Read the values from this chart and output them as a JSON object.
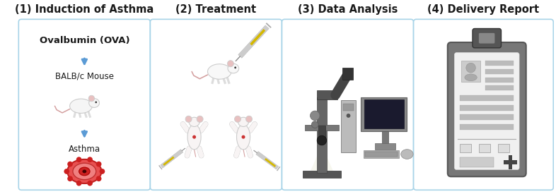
{
  "bg_color": "#ffffff",
  "panel_bg": "#ffffff",
  "panel_border": "#a8d4e8",
  "panel_titles": [
    "(1) Induction of Asthma",
    "(2) Treatment",
    "(3) Data Analysis",
    "(4) Delivery Report"
  ],
  "title_fontsize": 10.5,
  "arrow_color": "#5b9bd5",
  "text_color": "#1a1a1a",
  "fig_w": 7.86,
  "fig_h": 2.75,
  "dpi": 100
}
